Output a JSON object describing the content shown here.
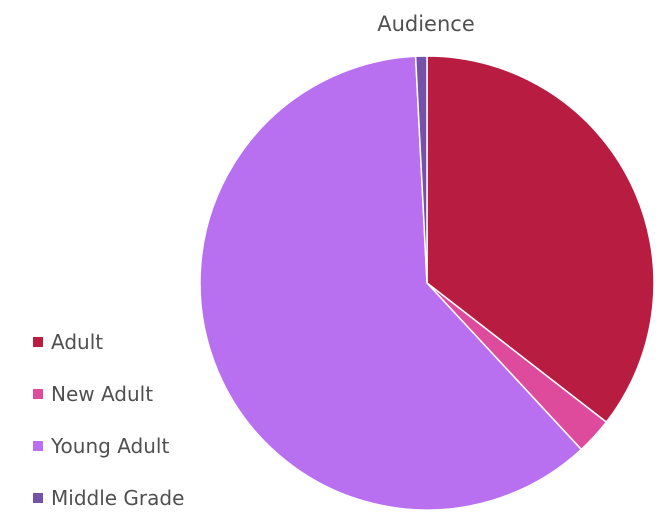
{
  "chart_data": {
    "type": "pie",
    "title": "Audience",
    "legend_position": "left-bottom",
    "categories": [
      "Adult",
      "New Adult",
      "Young Adult",
      "Middle Grade"
    ],
    "values": [
      35.5,
      2.6,
      61.1,
      0.8
    ],
    "colors": [
      "#b81c40",
      "#de4b9c",
      "#b86ff0",
      "#7352a8"
    ]
  }
}
